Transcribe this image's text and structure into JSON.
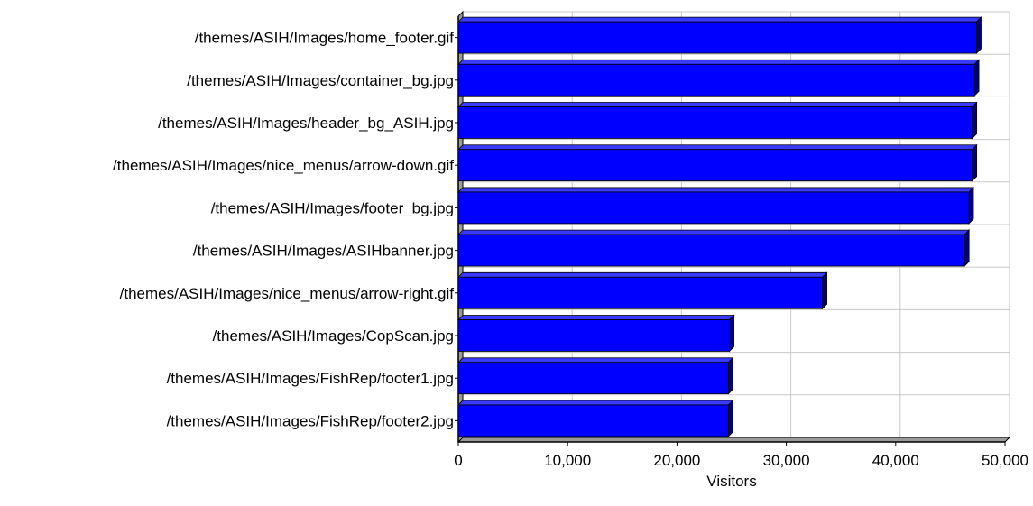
{
  "chart_data": {
    "type": "bar",
    "orientation": "horizontal",
    "categories": [
      "/themes/ASIH/Images/home_footer.gif",
      "/themes/ASIH/Images/container_bg.jpg",
      "/themes/ASIH/Images/header_bg_ASIH.jpg",
      "/themes/ASIH/Images/nice_menus/arrow-down.gif",
      "/themes/ASIH/Images/footer_bg.jpg",
      "/themes/ASIH/Images/ASIHbanner.jpg",
      "/themes/ASIH/Images/nice_menus/arrow-right.gif",
      "/themes/ASIH/Images/CopScan.jpg",
      "/themes/ASIH/Images/FishRep/footer1.jpg",
      "/themes/ASIH/Images/FishRep/footer2.jpg"
    ],
    "values": [
      47400,
      47200,
      47000,
      47000,
      46700,
      46300,
      33300,
      24800,
      24700,
      24700
    ],
    "xlabel": "Visitors",
    "ylabel": "",
    "xlim": [
      0,
      50000
    ],
    "x_ticks": [
      0,
      10000,
      20000,
      30000,
      40000,
      50000
    ],
    "x_tick_labels": [
      "0",
      "10,000",
      "20,000",
      "30,000",
      "40,000",
      "50,000"
    ],
    "grid": true,
    "colors": {
      "bar_face": "#0000ff",
      "bar_top": "#3a3aff",
      "bar_side": "#00007a",
      "bar_edge": "#000000",
      "grid": "#c8c8c8",
      "axis": "#000000"
    }
  }
}
